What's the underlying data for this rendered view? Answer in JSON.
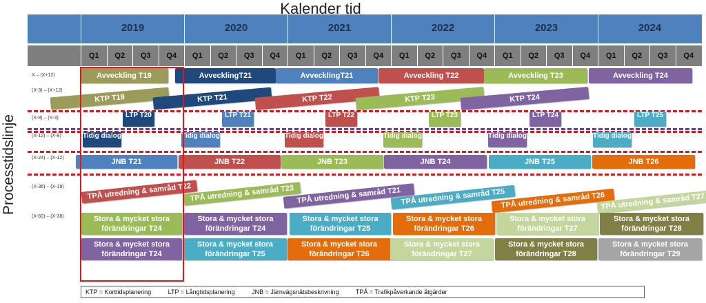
{
  "title_top": "Kalender tid",
  "title_side": "Processtidslinje",
  "years": [
    "2019",
    "2020",
    "2021",
    "2022",
    "2023",
    "2024"
  ],
  "quarters": [
    "Q1",
    "Q2",
    "Q3",
    "Q4"
  ],
  "row_labels": [
    "X – (X+12)",
    "(X-3) – (X+12)",
    "(X-8) – (X-3)",
    "(X-12) – (X-8)",
    "(X-24) – (X-12)",
    "(X-36) – (X-19)",
    "(X-60) – (X-38)"
  ],
  "avveckling": [
    "Avveckling T19",
    "AvvecklingT21",
    "AvvecklingT21",
    "Avveckling T22",
    "Avveckling T23",
    "Avveckling T24"
  ],
  "ktp": [
    "KTP T19",
    "KTP T21",
    "KTP T22",
    "KTP T23",
    "KTP T24"
  ],
  "ltp": [
    "LTP T20",
    "LTP T21",
    "LTP T22",
    "LTP T23",
    "LTP T24",
    "LTP T25"
  ],
  "tidig": [
    "Tidig dialog",
    "Tidig dialog",
    "Tidig dialog",
    "Tidig dialog",
    "Tidig dialog",
    "Tidig dialog"
  ],
  "jnb": [
    "JNB T21",
    "JNB T22",
    "JNB T23",
    "JNB T24",
    "JNB T25",
    "JNB T26"
  ],
  "tpa": [
    "TPÅ utredning & samråd T22",
    "TPÅ utredning & samråd T23",
    "TPÅ utredning & samråd T21",
    "TPÅ utredning & samråd T25",
    "TPÅ utredning & samråd T26",
    "TPÅ utredning & samråd T27"
  ],
  "stora_top": [
    "Stora & mycket stora förändringar T24",
    "Stora & mycket stora förändringar T24",
    "Stora & mycket stora förändringar T25",
    "Stora & mycket stora förändringar T26",
    "Stora & mycket stora förändringar T27",
    "Stora & mycket stora förändringar T28"
  ],
  "stora_bottom": [
    "Stora & mycket stora förändringar T24",
    "Stora & mycket stora förändringar T25",
    "Stora & mycket stora förändringar T26",
    "Stora & mycket stora förändringar T27",
    "Stora & mycket stora förändringar T28",
    "Stora & mycket stora förändringar T29"
  ],
  "legend": [
    "KTP = Korttidsplanering",
    "LTP = Långtidsplanering",
    "JNB = Järnvägsnätsbeskrivning",
    "TPÅ = Trafikpåverkande åtgärder"
  ],
  "colors": {
    "header_blue": "#4f81bd",
    "quarter_gray": "#7f7f7f",
    "olive": "#9b9b5a",
    "navy": "#1f497d",
    "blue": "#4f81bd",
    "red": "#c0504d",
    "green": "#9bbb59",
    "purple": "#8064a2",
    "teal": "#4bacc6",
    "orange": "#e46c0a",
    "lightgreen": "#c3d69b",
    "brownolive": "#7f7f46",
    "gray": "#a5a5a5",
    "accent_red": "#e4161b"
  }
}
